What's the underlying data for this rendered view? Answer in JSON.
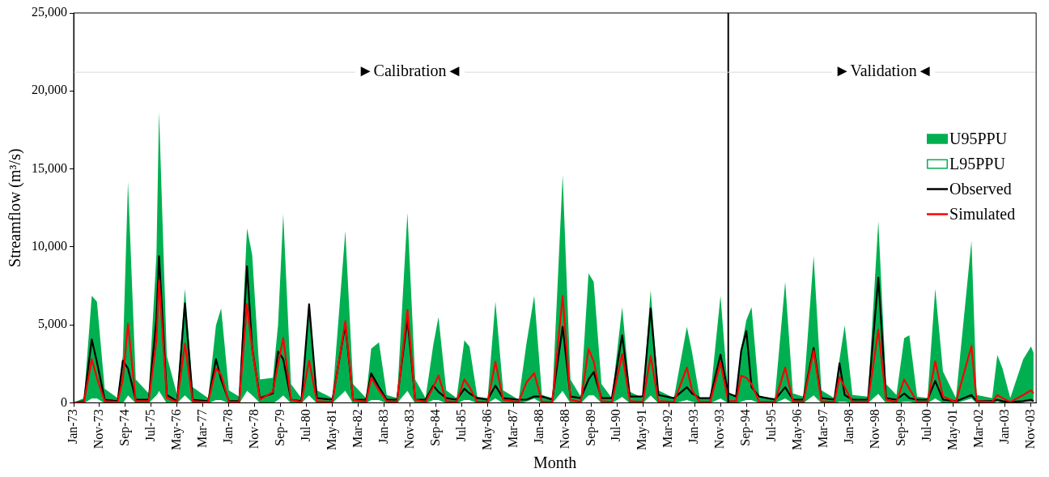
{
  "chart_data": {
    "type": "line",
    "xlabel": "Month",
    "ylabel": "Streamflow (m³/s)",
    "x": [
      "1973-01",
      "1973-05",
      "1973-08",
      "1973-10",
      "1974-01",
      "1974-06",
      "1974-08",
      "1974-10",
      "1975-01",
      "1975-06",
      "1975-09",
      "1975-10",
      "1976-01",
      "1976-05",
      "1976-08",
      "1976-11",
      "1977-05",
      "1977-08",
      "1977-10",
      "1978-01",
      "1978-05",
      "1978-08",
      "1978-10",
      "1979-01",
      "1979-06",
      "1979-08",
      "1979-10",
      "1980-01",
      "1980-05",
      "1980-08",
      "1980-11",
      "1981-05",
      "1981-10",
      "1982-01",
      "1982-06",
      "1982-08",
      "1982-11",
      "1983-02",
      "1983-06",
      "1983-10",
      "1984-01",
      "1984-05",
      "1984-08",
      "1984-10",
      "1985-01",
      "1985-05",
      "1985-08",
      "1985-10",
      "1986-01",
      "1986-05",
      "1986-08",
      "1986-11",
      "1987-05",
      "1987-08",
      "1987-11",
      "1988-02",
      "1988-06",
      "1988-10",
      "1989-01",
      "1989-05",
      "1989-08",
      "1989-10",
      "1990-01",
      "1990-05",
      "1990-09",
      "1990-12",
      "1991-05",
      "1991-08",
      "1991-11",
      "1992-05",
      "1992-10",
      "1992-12",
      "1993-03",
      "1993-07",
      "1993-11",
      "1994-02",
      "1994-05",
      "1994-07",
      "1994-09",
      "1994-11",
      "1995-02",
      "1995-08",
      "1995-12",
      "1996-03",
      "1996-07",
      "1996-11",
      "1997-02",
      "1997-07",
      "1997-09",
      "1997-11",
      "1998-02",
      "1998-08",
      "1998-12",
      "1999-03",
      "1999-07",
      "1999-10",
      "1999-12",
      "2000-03",
      "2000-07",
      "2000-10",
      "2001-01",
      "2001-06",
      "2001-12",
      "2002-02",
      "2002-08",
      "2002-10",
      "2002-12",
      "2003-03",
      "2003-08",
      "2003-11",
      "2003-12"
    ],
    "series": [
      {
        "name": "U95PPU",
        "type": "area",
        "color": "#00b050",
        "values": [
          0,
          300,
          6860,
          6480,
          900,
          300,
          3000,
          14170,
          1500,
          600,
          9500,
          18680,
          3000,
          500,
          7310,
          1000,
          300,
          4960,
          6050,
          800,
          400,
          11190,
          9480,
          1500,
          1600,
          5000,
          12100,
          1200,
          300,
          6200,
          800,
          300,
          11010,
          1200,
          300,
          3470,
          3880,
          500,
          300,
          12180,
          1500,
          300,
          3720,
          5500,
          800,
          300,
          4000,
          3600,
          400,
          300,
          6500,
          800,
          200,
          3790,
          6860,
          500,
          300,
          14620,
          1500,
          400,
          8300,
          7760,
          1200,
          300,
          6140,
          700,
          300,
          7220,
          800,
          300,
          4870,
          3250,
          300,
          300,
          6860,
          500,
          500,
          3500,
          5300,
          6140,
          400,
          300,
          7760,
          600,
          400,
          9420,
          800,
          300,
          2800,
          4960,
          500,
          400,
          11640,
          1200,
          500,
          4150,
          4330,
          400,
          300,
          7310,
          2000,
          300,
          10380,
          500,
          300,
          3070,
          2200,
          300,
          2800,
          3610,
          3200
        ]
      },
      {
        "name": "L95PPU",
        "type": "area",
        "color": "#00b050",
        "values": [
          0,
          0,
          300,
          300,
          0,
          0,
          0,
          500,
          0,
          0,
          500,
          800,
          0,
          0,
          500,
          0,
          0,
          200,
          200,
          0,
          0,
          800,
          500,
          0,
          0,
          200,
          500,
          0,
          0,
          500,
          0,
          0,
          800,
          0,
          0,
          200,
          200,
          0,
          0,
          800,
          0,
          0,
          200,
          200,
          0,
          0,
          200,
          200,
          0,
          0,
          300,
          0,
          0,
          100,
          300,
          0,
          0,
          800,
          0,
          0,
          500,
          500,
          0,
          0,
          400,
          0,
          0,
          500,
          0,
          0,
          200,
          100,
          0,
          0,
          300,
          0,
          0,
          100,
          200,
          200,
          0,
          0,
          300,
          0,
          0,
          500,
          0,
          0,
          100,
          100,
          0,
          0,
          600,
          0,
          0,
          100,
          100,
          0,
          0,
          300,
          0,
          0,
          300,
          0,
          0,
          100,
          0,
          0,
          100,
          100,
          100
        ]
      },
      {
        "name": "Observed",
        "type": "line",
        "color": "#000000",
        "values": [
          0,
          100,
          4060,
          2600,
          200,
          100,
          2700,
          2200,
          200,
          200,
          5400,
          9400,
          500,
          100,
          6370,
          200,
          100,
          2800,
          1500,
          100,
          100,
          8750,
          3500,
          300,
          600,
          3300,
          2800,
          200,
          100,
          6320,
          300,
          200,
          5000,
          200,
          200,
          1880,
          1000,
          200,
          200,
          5400,
          200,
          200,
          1100,
          700,
          300,
          200,
          900,
          600,
          300,
          200,
          1100,
          300,
          200,
          200,
          400,
          400,
          200,
          4870,
          400,
          300,
          1500,
          1970,
          300,
          300,
          4330,
          400,
          400,
          6050,
          500,
          300,
          1000,
          600,
          300,
          300,
          3090,
          600,
          400,
          3340,
          4600,
          1000,
          400,
          200,
          1000,
          200,
          200,
          3520,
          300,
          200,
          2530,
          500,
          200,
          200,
          8030,
          300,
          200,
          600,
          300,
          200,
          200,
          1400,
          200,
          100,
          500,
          100,
          100,
          200,
          100,
          50,
          100,
          200,
          100
        ]
      },
      {
        "name": "Simulated",
        "type": "line",
        "color": "#ff0000",
        "values": [
          0,
          50,
          2800,
          1600,
          100,
          50,
          1500,
          5070,
          100,
          100,
          4000,
          7850,
          300,
          50,
          3790,
          100,
          50,
          2200,
          1800,
          50,
          50,
          6340,
          3400,
          200,
          700,
          2500,
          4150,
          200,
          50,
          2700,
          100,
          50,
          5230,
          200,
          50,
          1600,
          800,
          100,
          50,
          5960,
          200,
          50,
          1000,
          1750,
          100,
          50,
          1500,
          1000,
          50,
          50,
          2620,
          200,
          50,
          1300,
          1900,
          50,
          50,
          6860,
          200,
          50,
          3450,
          2650,
          100,
          50,
          3120,
          100,
          50,
          3000,
          100,
          50,
          2260,
          800,
          50,
          50,
          2560,
          100,
          100,
          1730,
          1600,
          1200,
          50,
          50,
          2260,
          100,
          50,
          3340,
          100,
          50,
          1650,
          1000,
          50,
          50,
          4690,
          200,
          50,
          1500,
          900,
          50,
          50,
          2650,
          400,
          50,
          3640,
          100,
          50,
          500,
          300,
          50,
          500,
          800,
          600
        ]
      }
    ],
    "xlim": [
      "1973-01",
      "2004-01"
    ],
    "xticks": [
      {
        "value": "1973-01",
        "label": "Jan-73"
      },
      {
        "value": "1973-11",
        "label": "Nov-73"
      },
      {
        "value": "1974-09",
        "label": "Sep-74"
      },
      {
        "value": "1975-07",
        "label": "Jul-75"
      },
      {
        "value": "1976-05",
        "label": "May-76"
      },
      {
        "value": "1977-03",
        "label": "Mar-77"
      },
      {
        "value": "1978-01",
        "label": "Jan-78"
      },
      {
        "value": "1978-11",
        "label": "Nov-78"
      },
      {
        "value": "1979-09",
        "label": "Sep-79"
      },
      {
        "value": "1980-07",
        "label": "Jul-80"
      },
      {
        "value": "1981-05",
        "label": "May-81"
      },
      {
        "value": "1982-03",
        "label": "Mar-82"
      },
      {
        "value": "1983-01",
        "label": "Jan-83"
      },
      {
        "value": "1983-11",
        "label": "Nov-83"
      },
      {
        "value": "1984-09",
        "label": "Sep-84"
      },
      {
        "value": "1985-07",
        "label": "Jul-85"
      },
      {
        "value": "1986-05",
        "label": "May-86"
      },
      {
        "value": "1987-03",
        "label": "Mar-87"
      },
      {
        "value": "1988-01",
        "label": "Jan-88"
      },
      {
        "value": "1988-11",
        "label": "Nov-88"
      },
      {
        "value": "1989-09",
        "label": "Sep-89"
      },
      {
        "value": "1990-07",
        "label": "Jul-90"
      },
      {
        "value": "1991-05",
        "label": "May-91"
      },
      {
        "value": "1992-03",
        "label": "Mar-92"
      },
      {
        "value": "1993-01",
        "label": "Jan-93"
      },
      {
        "value": "1993-11",
        "label": "Nov-93"
      },
      {
        "value": "1994-09",
        "label": "Sep-94"
      },
      {
        "value": "1995-07",
        "label": "Jul-95"
      },
      {
        "value": "1996-05",
        "label": "May-96"
      },
      {
        "value": "1997-03",
        "label": "Mar-97"
      },
      {
        "value": "1998-01",
        "label": "Jan-98"
      },
      {
        "value": "1998-11",
        "label": "Nov-98"
      },
      {
        "value": "1999-09",
        "label": "Sep-99"
      },
      {
        "value": "2000-07",
        "label": "Jul-00"
      },
      {
        "value": "2001-05",
        "label": "May-01"
      },
      {
        "value": "2002-03",
        "label": "Mar-02"
      },
      {
        "value": "2003-01",
        "label": "Jan-03"
      },
      {
        "value": "2003-11",
        "label": "Nov-03"
      }
    ],
    "ylim": [
      0,
      25000
    ],
    "yticks": [
      {
        "value": 0,
        "label": "0"
      },
      {
        "value": 5000,
        "label": "5,000"
      },
      {
        "value": 10000,
        "label": "10,000"
      },
      {
        "value": 15000,
        "label": "15,000"
      },
      {
        "value": 20000,
        "label": "20,000"
      },
      {
        "value": 25000,
        "label": "25,000"
      }
    ],
    "ref_lines": [
      {
        "axis": "x",
        "value": "1994-02",
        "color": "#000000"
      },
      {
        "axis": "y",
        "value": 21200,
        "color": "#d9d9d9"
      }
    ],
    "annotations": [
      {
        "text": "►Calibration◄",
        "x": "1983-11",
        "y": 21200
      },
      {
        "text": "►Validation◄",
        "x": "1999-02",
        "y": 21200
      }
    ],
    "legend": "top right",
    "grid": false
  }
}
